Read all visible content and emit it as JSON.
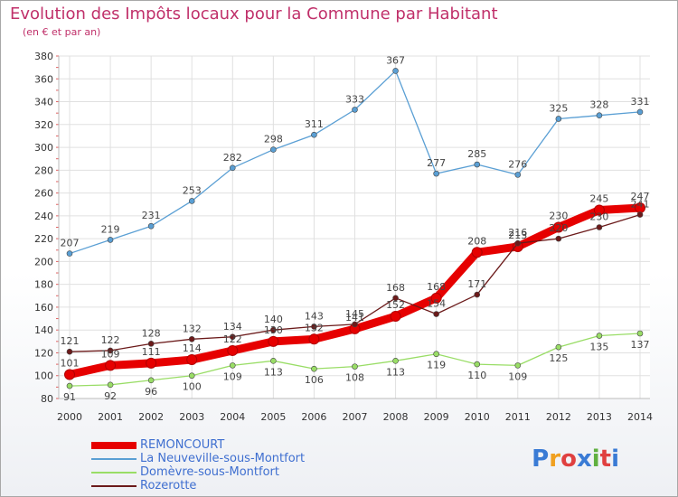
{
  "header": {
    "title": "Evolution des Impôts locaux pour la Commune par Habitant",
    "subtitle": "(en € et par an)"
  },
  "logo": {
    "text": "Proxiti",
    "colors": [
      "#3a7bd5",
      "#f0a020",
      "#e04040",
      "#3a7bd5",
      "#60b040",
      "#e04040",
      "#3a7bd5"
    ]
  },
  "colors": {
    "title": "#c0306a",
    "legend_text": "#3f6fd0",
    "grid": "#e0e0e0",
    "axis_ticks": "#e06060"
  },
  "chart_data": {
    "type": "line",
    "x": [
      "2000",
      "2001",
      "2002",
      "2003",
      "2004",
      "2005",
      "2006",
      "2007",
      "2008",
      "2009",
      "2010",
      "2011",
      "2012",
      "2013",
      "2014"
    ],
    "ylim": [
      80,
      380
    ],
    "yticks": [
      80,
      100,
      120,
      140,
      160,
      180,
      200,
      220,
      240,
      260,
      280,
      300,
      320,
      340,
      360,
      380
    ],
    "grid": true,
    "legend_placement": "bottom-left",
    "series": [
      {
        "name": "REMONCOURT",
        "color": "#e60000",
        "values": [
          101,
          109,
          111,
          114,
          122,
          130,
          132,
          141,
          152,
          168,
          208,
          213,
          230,
          245,
          247
        ],
        "labels": [
          101,
          109,
          111,
          114,
          122,
          130,
          132,
          141,
          152,
          168,
          208,
          213,
          230,
          245,
          247
        ]
      },
      {
        "name": "La Neuveville-sous-Montfort",
        "color": "#5a9fd4",
        "values": [
          207,
          219,
          231,
          253,
          282,
          298,
          311,
          333,
          367,
          277,
          285,
          276,
          325,
          328,
          331
        ],
        "labels": [
          207,
          219,
          231,
          253,
          282,
          298,
          311,
          333,
          367,
          277,
          285,
          276,
          325,
          328,
          331
        ]
      },
      {
        "name": "Domèvre-sous-Montfort",
        "color": "#99dd66",
        "values": [
          91,
          92,
          96,
          100,
          109,
          113,
          106,
          108,
          113,
          119,
          110,
          109,
          125,
          135,
          137
        ],
        "labels": [
          91,
          92,
          96,
          100,
          109,
          113,
          106,
          108,
          113,
          119,
          110,
          109,
          125,
          135,
          137
        ]
      },
      {
        "name": "Rozerotte",
        "color": "#6b1a1a",
        "values": [
          121,
          122,
          128,
          132,
          134,
          140,
          143,
          145,
          168,
          154,
          171,
          216,
          220,
          230,
          241
        ],
        "labels": [
          121,
          122,
          128,
          132,
          134,
          140,
          143,
          145,
          168,
          154,
          171,
          216,
          220,
          230,
          241
        ]
      }
    ]
  }
}
